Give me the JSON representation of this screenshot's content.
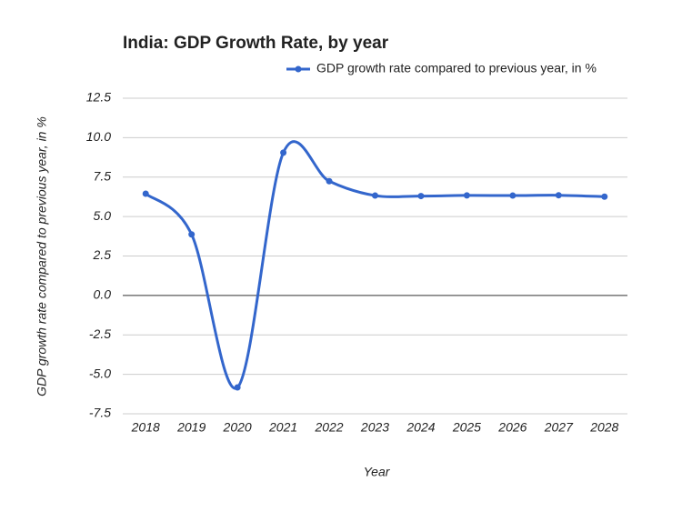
{
  "chart_data": {
    "type": "line",
    "title": "India: GDP Growth Rate, by year",
    "x_label": "Year",
    "y_label": "GDP growth rate compared to previous year, in %",
    "categories": [
      "2018",
      "2019",
      "2020",
      "2021",
      "2022",
      "2023",
      "2024",
      "2025",
      "2026",
      "2027",
      "2028"
    ],
    "series": [
      {
        "name": "GDP growth rate compared to previous year, in %",
        "color": "#3366cc",
        "values": [
          6.45,
          3.87,
          -5.83,
          9.05,
          7.24,
          6.33,
          6.3,
          6.34,
          6.33,
          6.35,
          6.26
        ]
      }
    ],
    "ylim": [
      -7.5,
      12.5
    ],
    "yticks": [
      -7.5,
      {
        "value": -5,
        "label": "-5.0"
      },
      -2.5,
      {
        "value": 0,
        "label": "0.0"
      },
      2.5,
      {
        "value": 5,
        "label": "5.0"
      },
      7.5,
      {
        "value": 10,
        "label": "10.0"
      },
      12.5
    ],
    "grid": true,
    "legend": "top-right",
    "smooth": true
  }
}
